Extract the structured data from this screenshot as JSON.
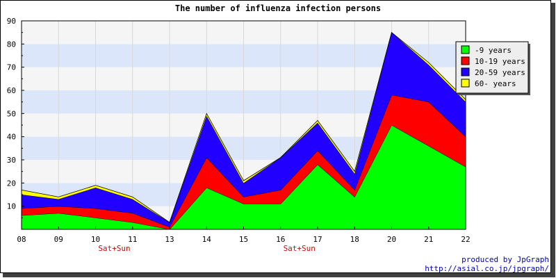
{
  "chart_data": {
    "type": "area",
    "stacked": true,
    "title": "The number of influenza infection persons",
    "xlabel": "",
    "ylabel": "",
    "ylim": [
      0,
      90
    ],
    "y_ticks": [
      "10",
      "20",
      "30",
      "40",
      "50",
      "60",
      "70",
      "80",
      "90"
    ],
    "categories": [
      "08",
      "09",
      "10",
      "11",
      "13",
      "14",
      "15",
      "16",
      "17",
      "18",
      "20",
      "21",
      "22"
    ],
    "sublabels": [
      "",
      "",
      "Sat+Sun",
      "",
      "",
      "",
      "",
      "Sat+Sun",
      "",
      "",
      "",
      "",
      ""
    ],
    "legend_position": "top-right",
    "grid": true,
    "series": [
      {
        "name": "-9 years",
        "color": "#00ff00",
        "values": [
          6,
          7,
          5,
          3,
          0,
          18,
          11,
          11,
          28,
          14,
          45,
          36,
          27
        ]
      },
      {
        "name": "10-19 years",
        "color": "#ff0000",
        "values": [
          3,
          3,
          4,
          4,
          1,
          13,
          3,
          6,
          6,
          3,
          13,
          19,
          13
        ]
      },
      {
        "name": "20-59 years",
        "color": "#2200ff",
        "values": [
          6,
          3,
          9,
          6,
          2,
          18,
          6,
          14,
          12,
          7,
          27,
          16,
          15
        ]
      },
      {
        "name": "60- years",
        "color": "#ffff00",
        "values": [
          2,
          1,
          1,
          1,
          0,
          1,
          1,
          0,
          1,
          1,
          0,
          1,
          1
        ]
      }
    ]
  },
  "credits": {
    "line1": "produced by JpGraph",
    "line2": "http://asial.co.jp/jpgraph/"
  }
}
